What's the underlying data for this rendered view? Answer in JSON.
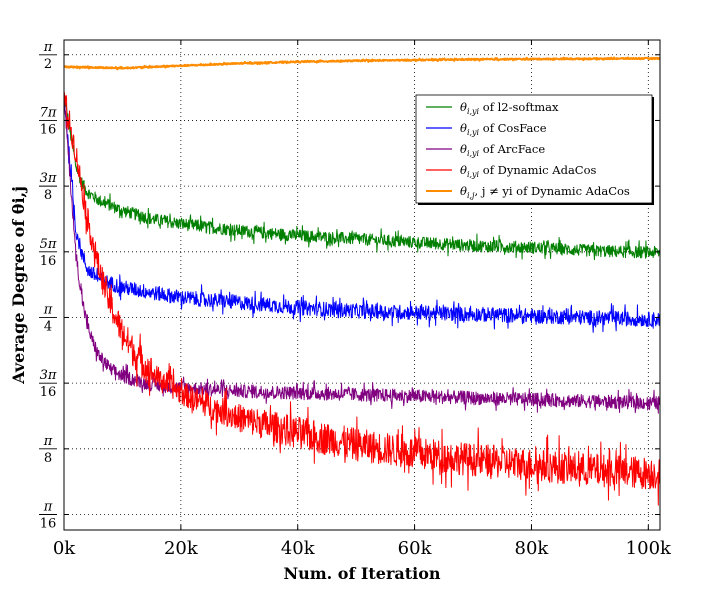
{
  "chart_data": {
    "type": "line",
    "title": "",
    "xlabel": "Num. of Iteration",
    "ylabel": "Average Degree of θi,j",
    "xlim": [
      0,
      102000
    ],
    "ylim": [
      0.15,
      1.615
    ],
    "x_ticks": [
      {
        "value": 0,
        "label": "0k"
      },
      {
        "value": 20000,
        "label": "20k"
      },
      {
        "value": 40000,
        "label": "40k"
      },
      {
        "value": 60000,
        "label": "60k"
      },
      {
        "value": 80000,
        "label": "80k"
      },
      {
        "value": 100000,
        "label": "100k"
      }
    ],
    "y_ticks": [
      {
        "value": 0.19635,
        "num": "π",
        "den": "16"
      },
      {
        "value": 0.3927,
        "num": "π",
        "den": "8"
      },
      {
        "value": 0.58905,
        "num": "3π",
        "den": "16"
      },
      {
        "value": 0.7854,
        "num": "π",
        "den": "4"
      },
      {
        "value": 0.98175,
        "num": "5π",
        "den": "16"
      },
      {
        "value": 1.1781,
        "num": "3π",
        "den": "8"
      },
      {
        "value": 1.37445,
        "num": "7π",
        "den": "16"
      },
      {
        "value": 1.5708,
        "num": "π",
        "den": "2"
      }
    ],
    "grid": true,
    "legend_position": "upper-right",
    "series": [
      {
        "name": "θi,yi of l2-softmax",
        "color": "#008000",
        "noise": 0.018,
        "x": [
          0,
          2000,
          3000,
          4000,
          6000,
          10000,
          15000,
          20000,
          30000,
          40000,
          50000,
          60000,
          70000,
          80000,
          90000,
          100000,
          102000
        ],
        "y": [
          1.45,
          1.24,
          1.19,
          1.16,
          1.135,
          1.105,
          1.08,
          1.065,
          1.045,
          1.03,
          1.02,
          1.01,
          1.0,
          0.995,
          0.985,
          0.98,
          0.98
        ]
      },
      {
        "name": "θi,yi of CosFace",
        "color": "#0000ff",
        "noise": 0.022,
        "x": [
          0,
          2000,
          3000,
          4000,
          6000,
          10000,
          15000,
          20000,
          30000,
          40000,
          50000,
          60000,
          70000,
          80000,
          90000,
          100000,
          102000
        ],
        "y": [
          1.45,
          1.05,
          0.98,
          0.93,
          0.9,
          0.875,
          0.86,
          0.845,
          0.83,
          0.815,
          0.805,
          0.8,
          0.795,
          0.79,
          0.785,
          0.78,
          0.78
        ]
      },
      {
        "name": "θi,yi of ArcFace",
        "color": "#800080",
        "noise": 0.02,
        "x": [
          0,
          2000,
          3000,
          4000,
          5000,
          6000,
          8000,
          10000,
          15000,
          20000,
          30000,
          40000,
          50000,
          60000,
          70000,
          80000,
          90000,
          100000,
          102000
        ],
        "y": [
          1.45,
          0.98,
          0.85,
          0.76,
          0.71,
          0.67,
          0.63,
          0.61,
          0.585,
          0.575,
          0.565,
          0.56,
          0.555,
          0.55,
          0.545,
          0.54,
          0.535,
          0.53,
          0.53
        ]
      },
      {
        "name": "θi,yi of Dynamic AdaCos",
        "color": "#ff0000",
        "noise": 0.035,
        "x": [
          0,
          2000,
          4000,
          6000,
          8000,
          10000,
          12000,
          15000,
          20000,
          25000,
          30000,
          40000,
          50000,
          60000,
          70000,
          80000,
          90000,
          100000,
          102000
        ],
        "y": [
          1.45,
          1.28,
          1.08,
          0.93,
          0.82,
          0.74,
          0.68,
          0.62,
          0.56,
          0.52,
          0.485,
          0.44,
          0.405,
          0.38,
          0.36,
          0.345,
          0.33,
          0.32,
          0.32
        ]
      },
      {
        "name": "θi,j, j ≠ yi of Dynamic AdaCos",
        "color": "#ff8c00",
        "noise": 0.002,
        "x": [
          0,
          5000,
          10000,
          20000,
          30000,
          40000,
          50000,
          60000,
          70000,
          80000,
          90000,
          100000,
          102000
        ],
        "y": [
          1.535,
          1.533,
          1.531,
          1.538,
          1.545,
          1.55,
          1.553,
          1.555,
          1.557,
          1.558,
          1.559,
          1.56,
          1.56
        ]
      }
    ],
    "legend": [
      {
        "sym": "θ",
        "sub": "i,yi",
        "text": " of l2-softmax"
      },
      {
        "sym": "θ",
        "sub": "i,yi",
        "text": " of CosFace"
      },
      {
        "sym": "θ",
        "sub": "i,yi",
        "text": " of ArcFace"
      },
      {
        "sym": "θ",
        "sub": "i,yi",
        "text": " of Dynamic AdaCos"
      },
      {
        "sym": "θ",
        "sub": "i,j",
        "text": ", j ≠ yi of Dynamic AdaCos"
      }
    ]
  }
}
